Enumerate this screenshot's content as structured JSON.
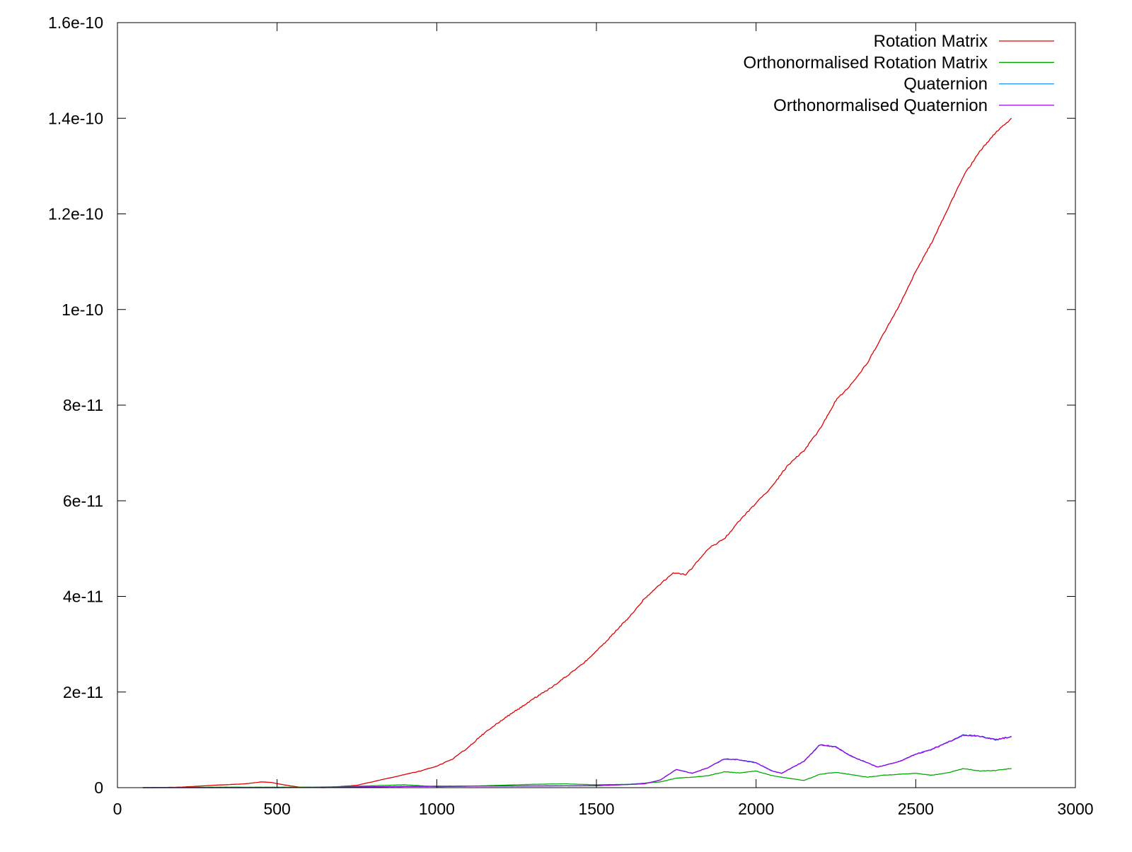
{
  "chart_data": {
    "type": "line",
    "title": "",
    "xlabel": "",
    "ylabel": "",
    "xlim": [
      0,
      3000
    ],
    "ylim": [
      0,
      1.6e-10
    ],
    "x_ticks": [
      0,
      500,
      1000,
      1500,
      2000,
      2500,
      3000
    ],
    "x_tick_labels": [
      "0",
      "500",
      "1000",
      "1500",
      "2000",
      "2500",
      "3000"
    ],
    "y_ticks": [
      0,
      2e-11,
      4e-11,
      6e-11,
      8e-11,
      1e-10,
      1.2e-10,
      1.4e-10,
      1.6e-10
    ],
    "y_tick_labels": [
      "0",
      "2e-11",
      "4e-11",
      "6e-11",
      "8e-11",
      "1e-10",
      "1.2e-10",
      "1.4e-10",
      "1.6e-10"
    ],
    "grid": false,
    "legend_position": "top-right",
    "series": [
      {
        "name": "Rotation Matrix",
        "color": "#e00000",
        "points": [
          [
            80,
            0
          ],
          [
            200,
            1e-13
          ],
          [
            300,
            5e-13
          ],
          [
            400,
            8e-13
          ],
          [
            450,
            1.2e-12
          ],
          [
            480,
            1.1e-12
          ],
          [
            520,
            6e-13
          ],
          [
            570,
            1e-13
          ],
          [
            650,
            0
          ],
          [
            750,
            5e-13
          ],
          [
            850,
            2e-12
          ],
          [
            950,
            3.5e-12
          ],
          [
            1000,
            4.5e-12
          ],
          [
            1050,
            6e-12
          ],
          [
            1100,
            8.5e-12
          ],
          [
            1150,
            1.15e-11
          ],
          [
            1200,
            1.4e-11
          ],
          [
            1250,
            1.62e-11
          ],
          [
            1300,
            1.85e-11
          ],
          [
            1350,
            2.05e-11
          ],
          [
            1400,
            2.3e-11
          ],
          [
            1450,
            2.55e-11
          ],
          [
            1500,
            2.85e-11
          ],
          [
            1550,
            3.2e-11
          ],
          [
            1600,
            3.55e-11
          ],
          [
            1650,
            3.95e-11
          ],
          [
            1700,
            4.25e-11
          ],
          [
            1740,
            4.5e-11
          ],
          [
            1780,
            4.45e-11
          ],
          [
            1800,
            4.6e-11
          ],
          [
            1850,
            5e-11
          ],
          [
            1900,
            5.2e-11
          ],
          [
            1950,
            5.6e-11
          ],
          [
            2000,
            5.95e-11
          ],
          [
            2050,
            6.3e-11
          ],
          [
            2100,
            6.75e-11
          ],
          [
            2150,
            7.05e-11
          ],
          [
            2200,
            7.5e-11
          ],
          [
            2250,
            8.1e-11
          ],
          [
            2300,
            8.45e-11
          ],
          [
            2350,
            8.9e-11
          ],
          [
            2400,
            9.5e-11
          ],
          [
            2450,
            1.01e-10
          ],
          [
            2500,
            1.08e-10
          ],
          [
            2550,
            1.14e-10
          ],
          [
            2600,
            1.21e-10
          ],
          [
            2650,
            1.28e-10
          ],
          [
            2700,
            1.33e-10
          ],
          [
            2750,
            1.37e-10
          ],
          [
            2800,
            1.4e-10
          ]
        ]
      },
      {
        "name": "Orthonormalised Rotation Matrix",
        "color": "#00aa00",
        "points": [
          [
            80,
            0
          ],
          [
            300,
            1e-13
          ],
          [
            500,
            1e-13
          ],
          [
            600,
            1e-13
          ],
          [
            700,
            2e-13
          ],
          [
            800,
            4e-13
          ],
          [
            900,
            6e-13
          ],
          [
            1000,
            2e-13
          ],
          [
            1100,
            3e-13
          ],
          [
            1200,
            5e-13
          ],
          [
            1300,
            7e-13
          ],
          [
            1400,
            8e-13
          ],
          [
            1500,
            6e-13
          ],
          [
            1600,
            7e-13
          ],
          [
            1700,
            1.2e-12
          ],
          [
            1750,
            2e-12
          ],
          [
            1800,
            2.2e-12
          ],
          [
            1850,
            2.5e-12
          ],
          [
            1900,
            3.3e-12
          ],
          [
            1950,
            3.1e-12
          ],
          [
            2000,
            3.5e-12
          ],
          [
            2050,
            2.5e-12
          ],
          [
            2100,
            2e-12
          ],
          [
            2150,
            1.5e-12
          ],
          [
            2200,
            2.8e-12
          ],
          [
            2250,
            3.2e-12
          ],
          [
            2300,
            2.7e-12
          ],
          [
            2350,
            2.2e-12
          ],
          [
            2400,
            2.6e-12
          ],
          [
            2450,
            2.8e-12
          ],
          [
            2500,
            3e-12
          ],
          [
            2550,
            2.6e-12
          ],
          [
            2600,
            3.1e-12
          ],
          [
            2650,
            4e-12
          ],
          [
            2700,
            3.5e-12
          ],
          [
            2750,
            3.6e-12
          ],
          [
            2800,
            4e-12
          ]
        ]
      },
      {
        "name": "Quaternion",
        "color": "#1e90ff",
        "points": [
          [
            80,
            0
          ],
          [
            500,
            0
          ],
          [
            1000,
            3e-13
          ],
          [
            1500,
            4e-13
          ],
          [
            1650,
            8e-13
          ],
          [
            1700,
            1.6e-12
          ],
          [
            1750,
            3.8e-12
          ],
          [
            1800,
            3e-12
          ],
          [
            1850,
            4.2e-12
          ],
          [
            1900,
            6e-12
          ],
          [
            1950,
            5.8e-12
          ],
          [
            2000,
            5.2e-12
          ],
          [
            2050,
            3.5e-12
          ],
          [
            2080,
            3e-12
          ],
          [
            2150,
            5.5e-12
          ],
          [
            2200,
            9e-12
          ],
          [
            2250,
            8.5e-12
          ],
          [
            2300,
            6.5e-12
          ],
          [
            2350,
            5.2e-12
          ],
          [
            2380,
            4.3e-12
          ],
          [
            2450,
            5.5e-12
          ],
          [
            2500,
            7e-12
          ],
          [
            2550,
            8e-12
          ],
          [
            2600,
            9.5e-12
          ],
          [
            2650,
            1.1e-11
          ],
          [
            2700,
            1.08e-11
          ],
          [
            2750,
            1e-11
          ],
          [
            2800,
            1.07e-11
          ]
        ]
      },
      {
        "name": "Orthonormalised Quaternion",
        "color": "#9a00e6",
        "points": [
          [
            80,
            0
          ],
          [
            500,
            0
          ],
          [
            1000,
            3e-13
          ],
          [
            1500,
            4e-13
          ],
          [
            1650,
            8e-13
          ],
          [
            1700,
            1.6e-12
          ],
          [
            1750,
            3.8e-12
          ],
          [
            1800,
            3e-12
          ],
          [
            1850,
            4.2e-12
          ],
          [
            1900,
            6e-12
          ],
          [
            1950,
            5.8e-12
          ],
          [
            2000,
            5.2e-12
          ],
          [
            2050,
            3.5e-12
          ],
          [
            2080,
            3e-12
          ],
          [
            2150,
            5.5e-12
          ],
          [
            2200,
            9e-12
          ],
          [
            2250,
            8.5e-12
          ],
          [
            2300,
            6.5e-12
          ],
          [
            2350,
            5.2e-12
          ],
          [
            2380,
            4.3e-12
          ],
          [
            2450,
            5.5e-12
          ],
          [
            2500,
            7e-12
          ],
          [
            2550,
            8e-12
          ],
          [
            2600,
            9.5e-12
          ],
          [
            2650,
            1.1e-11
          ],
          [
            2700,
            1.08e-11
          ],
          [
            2750,
            1e-11
          ],
          [
            2800,
            1.07e-11
          ]
        ]
      }
    ]
  }
}
